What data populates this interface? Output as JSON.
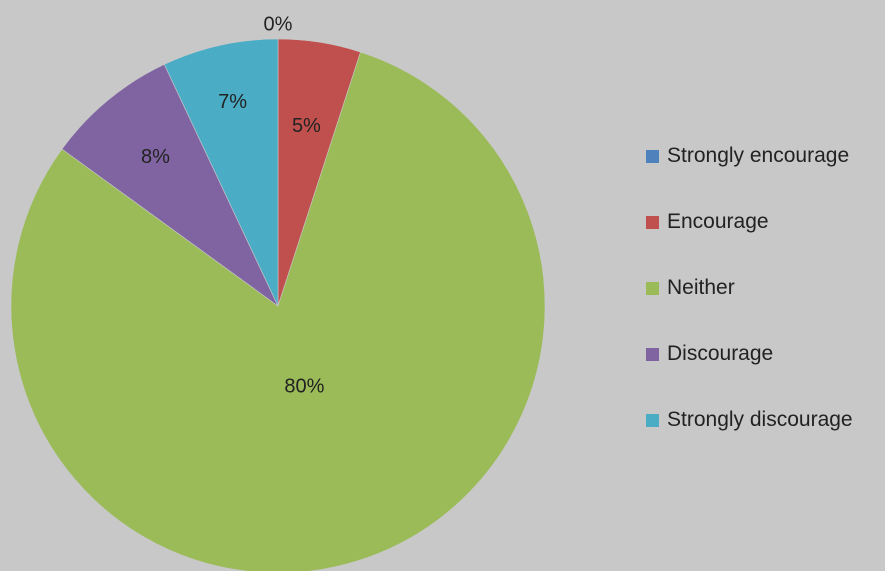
{
  "chart_data": {
    "type": "pie",
    "title": "",
    "categories": [
      "Strongly encourage",
      "Encourage",
      "Neither",
      "Discourage",
      "Strongly discourage"
    ],
    "values": [
      0,
      5,
      80,
      8,
      7
    ],
    "value_labels": [
      "0%",
      "5%",
      "80%",
      "8%",
      "7%"
    ],
    "colors": [
      "#4f81bd",
      "#c0504d",
      "#9bbb59",
      "#8064a2",
      "#4bacc6"
    ],
    "start_angle_deg": 0,
    "direction": "clockwise",
    "legend_position": "right"
  }
}
